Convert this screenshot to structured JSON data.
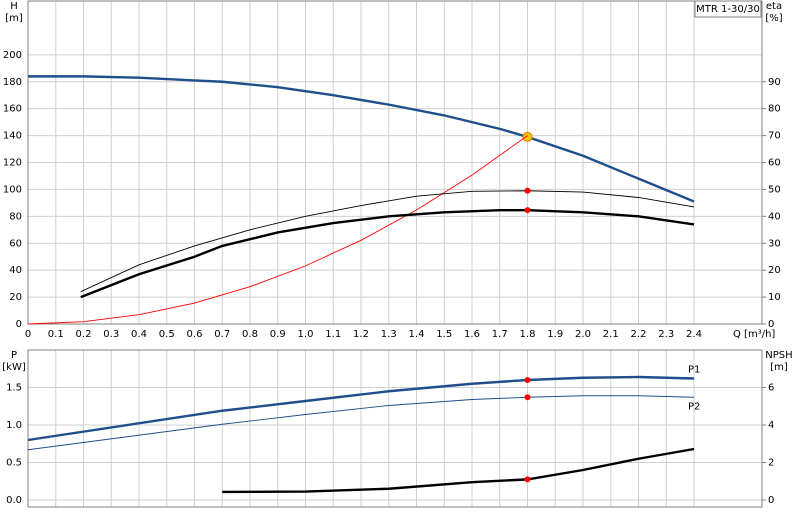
{
  "chart_data": [
    {
      "type": "line",
      "box_label": "MTR 1-30/30",
      "y_label": "H",
      "y_unit": "[m]",
      "y2_label": "eta",
      "y2_unit": "[%]",
      "x_label": "Q [m³/h]",
      "xlim": [
        0,
        2.645
      ],
      "xticks": [
        0,
        0.1,
        0.2,
        0.3,
        0.4,
        0.5,
        0.6,
        0.7,
        0.8,
        0.9,
        {
          "value": 1,
          "label": "1.0"
        },
        1.1,
        1.2,
        1.3,
        1.4,
        1.5,
        1.6,
        1.7,
        1.8,
        1.9,
        {
          "value": 2,
          "label": "2.0"
        },
        2.1,
        2.2,
        2.3,
        2.4
      ],
      "ylim": [
        0,
        240
      ],
      "yticks": [
        0,
        20,
        40,
        60,
        80,
        100,
        120,
        140,
        160,
        180,
        200
      ],
      "y2lim": [
        0,
        120
      ],
      "y2ticks": [
        0,
        10,
        20,
        30,
        40,
        50,
        60,
        70,
        80,
        90
      ],
      "grid": true,
      "duty_x": 1.8,
      "series": [
        {
          "color": "#1f4e8c",
          "style": "thick",
          "point_color": "#ffc20e",
          "x": [
            0,
            0.2,
            0.4,
            0.6,
            0.7,
            0.9,
            1.1,
            1.3,
            1.5,
            1.7,
            1.8,
            2.0,
            2.2,
            2.4
          ],
          "values": [
            184,
            184,
            183,
            181,
            180,
            176,
            170,
            163,
            155,
            145,
            139,
            125,
            108,
            91
          ]
        },
        {
          "color": "#ff0000",
          "style": "thin",
          "x": [
            0,
            0.2,
            0.4,
            0.6,
            0.8,
            1.0,
            1.2,
            1.4,
            1.6,
            1.8
          ],
          "values": [
            0,
            1.7,
            6.9,
            15.6,
            27.7,
            43.2,
            62.2,
            84.7,
            110.6,
            140
          ]
        },
        {
          "color": "#000000",
          "style": "thin",
          "axis": "y2",
          "point_color": "#ff0000",
          "x": [
            0.19,
            0.4,
            0.6,
            0.8,
            1.0,
            1.2,
            1.4,
            1.6,
            1.8,
            2.0,
            2.2,
            2.4
          ],
          "values": [
            12,
            22,
            29,
            35,
            40,
            44,
            47.5,
            49.3,
            49.5,
            49,
            47,
            43.5
          ]
        },
        {
          "color": "#000000",
          "style": "thick",
          "axis": "y2",
          "point_color": "#ff0000",
          "x": [
            0.19,
            0.4,
            0.6,
            0.7,
            0.9,
            1.1,
            1.3,
            1.5,
            1.7,
            1.8,
            2.0,
            2.2,
            2.4
          ],
          "values": [
            10,
            18.5,
            25,
            29,
            34,
            37.5,
            40,
            41.5,
            42.3,
            42.3,
            41.5,
            40,
            37
          ]
        }
      ]
    },
    {
      "type": "line",
      "y_label": "P",
      "y_unit": "[kW]",
      "y2_label": "NPSH",
      "y2_unit": "[m]",
      "xlim": [
        0,
        2.645
      ],
      "ylim": [
        0,
        2
      ],
      "yticks": [
        {
          "value": 0,
          "label": "0.0"
        },
        0.5,
        {
          "value": 1,
          "label": "1.0"
        },
        1.5
      ],
      "y2lim": [
        0,
        8
      ],
      "y2ticks": [
        0,
        2,
        4,
        6
      ],
      "grid": true,
      "duty_x": 1.8,
      "series": [
        {
          "name": "P1",
          "color": "#1f4e8c",
          "style": "thick",
          "point_color": "#ff0000",
          "x": [
            0,
            0.7,
            1.0,
            1.3,
            1.6,
            1.8,
            2.0,
            2.2,
            2.4
          ],
          "values": [
            0.8,
            1.19,
            1.32,
            1.45,
            1.55,
            1.6,
            1.63,
            1.64,
            1.62
          ]
        },
        {
          "name": "P2",
          "color": "#1f4e8c",
          "style": "thin",
          "point_color": "#ff0000",
          "x": [
            0,
            0.7,
            1.0,
            1.3,
            1.6,
            1.8,
            2.0,
            2.2,
            2.4
          ],
          "values": [
            0.67,
            1.01,
            1.14,
            1.26,
            1.34,
            1.37,
            1.39,
            1.39,
            1.37
          ]
        },
        {
          "color": "#000000",
          "style": "thick",
          "axis": "y2",
          "point_color": "#ff0000",
          "x": [
            0.7,
            1.0,
            1.3,
            1.6,
            1.8,
            2.0,
            2.2,
            2.4
          ],
          "values": [
            0.43,
            0.45,
            0.6,
            0.95,
            1.1,
            1.6,
            2.2,
            2.72
          ]
        }
      ]
    }
  ]
}
